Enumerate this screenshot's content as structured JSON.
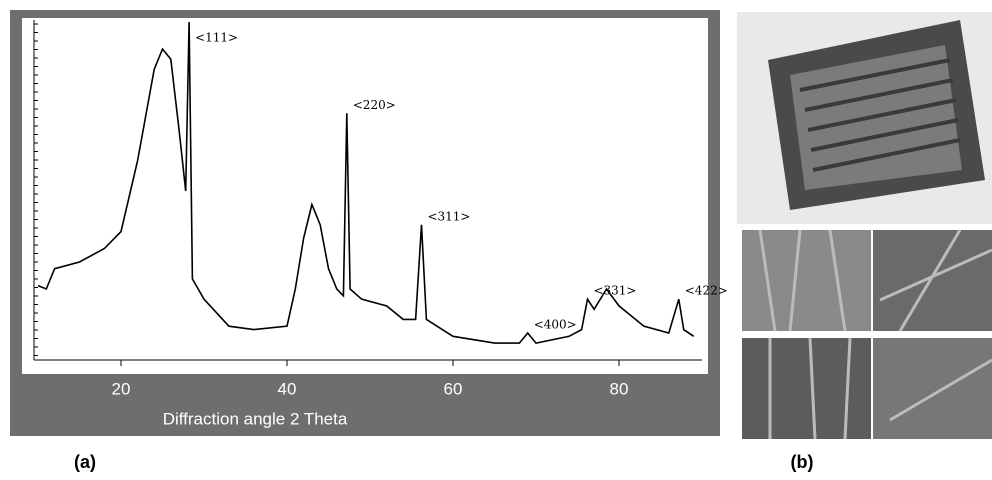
{
  "chart_data": {
    "type": "line",
    "xlabel": "Diffraction angle 2 Theta",
    "x": [
      10,
      11,
      12,
      15,
      18,
      20,
      22,
      24,
      25,
      26,
      27,
      27.8,
      28.2,
      28.6,
      30,
      33,
      36,
      40,
      41,
      42,
      43,
      44,
      45,
      46,
      46.8,
      47.2,
      47.6,
      49,
      52,
      54,
      55.5,
      56.2,
      56.8,
      60,
      65,
      68,
      69,
      70,
      74,
      75.5,
      76.2,
      77,
      78.5,
      80,
      83,
      86,
      87.2,
      87.8,
      89
    ],
    "values": [
      22,
      21,
      27,
      29,
      33,
      38,
      59,
      86,
      92,
      89,
      68,
      50,
      100,
      24,
      18,
      10,
      9,
      10,
      21,
      36,
      46,
      40,
      27,
      21,
      19,
      73,
      21,
      18,
      16,
      12,
      12,
      40,
      12,
      7,
      5,
      5,
      8,
      5,
      7,
      9,
      18,
      15,
      21,
      16,
      10,
      8,
      18,
      9,
      7
    ],
    "color": "#000000",
    "xlim": [
      10,
      90
    ],
    "ylim": [
      0,
      100
    ],
    "xticks": [
      20,
      40,
      60,
      80
    ],
    "annotations": [
      {
        "text": "<111>",
        "x": 28.2,
        "y": 100
      },
      {
        "text": "<220>",
        "x": 47.2,
        "y": 73
      },
      {
        "text": "<311>",
        "x": 56.2,
        "y": 40
      },
      {
        "text": "<400>",
        "x": 69,
        "y": 8
      },
      {
        "text": "<331>",
        "x": 76.2,
        "y": 18
      },
      {
        "text": "<422>",
        "x": 87.2,
        "y": 18
      }
    ],
    "captions": [
      "(a)",
      "(b)"
    ]
  }
}
